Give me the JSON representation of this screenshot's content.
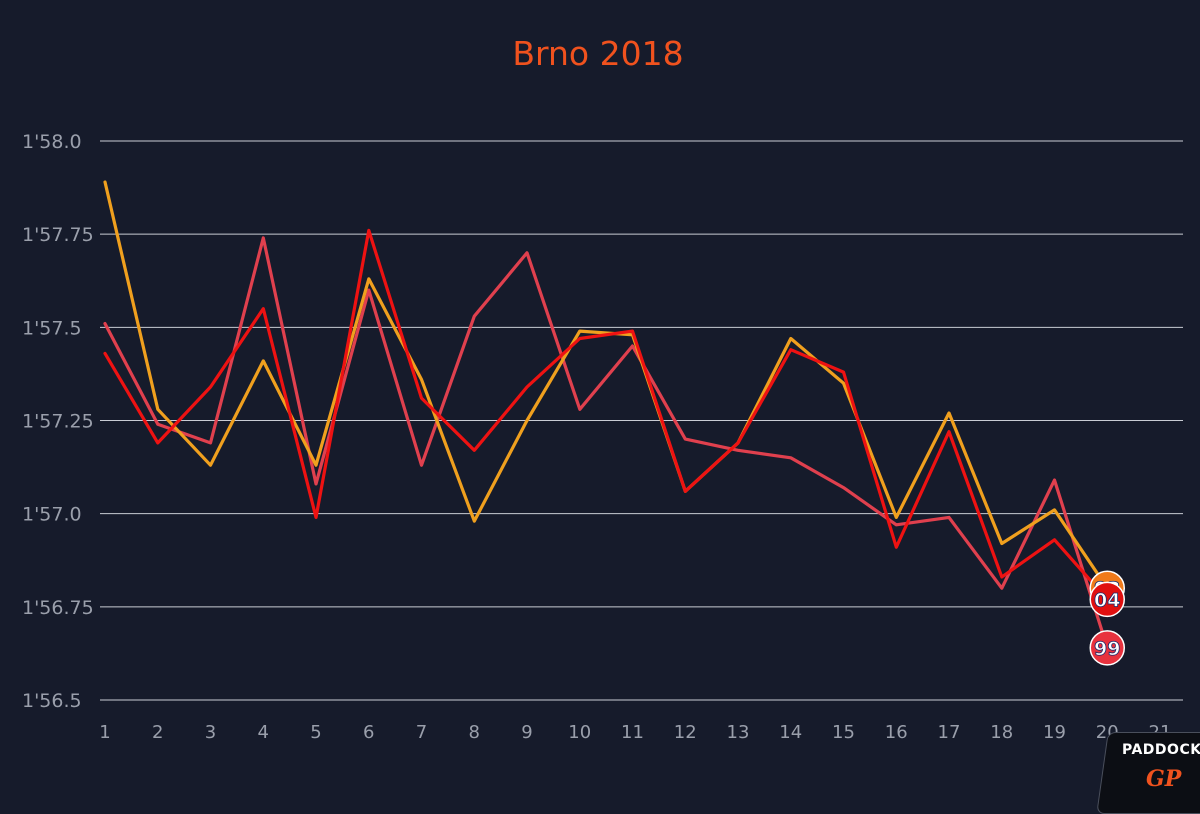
{
  "chart_data": {
    "type": "line",
    "title": "Brno 2018",
    "xlabel": "",
    "ylabel": "",
    "x": [
      1,
      2,
      3,
      4,
      5,
      6,
      7,
      8,
      9,
      10,
      11,
      12,
      13,
      14,
      15,
      16,
      17,
      18,
      19,
      20
    ],
    "xticks": [
      1,
      2,
      3,
      4,
      5,
      6,
      7,
      8,
      9,
      10,
      11,
      12,
      13,
      14,
      15,
      16,
      17,
      18,
      19,
      20,
      21
    ],
    "yticks": [
      {
        "value": 116.5,
        "label": "1'56.5"
      },
      {
        "value": 116.75,
        "label": "1'56.75"
      },
      {
        "value": 117.0,
        "label": "1'57.0"
      },
      {
        "value": 117.25,
        "label": "1'57.25"
      },
      {
        "value": 117.5,
        "label": "1'57.5"
      },
      {
        "value": 117.75,
        "label": "1'57.75"
      },
      {
        "value": 118.0,
        "label": "1'58.0"
      }
    ],
    "xlim": [
      1,
      21
    ],
    "ylim": [
      116.5,
      118.0
    ],
    "grid": true,
    "series": [
      {
        "name": "93",
        "color": "#f0a01e",
        "values": [
          117.89,
          117.28,
          117.13,
          117.41,
          117.13,
          117.63,
          117.36,
          116.98,
          117.25,
          117.49,
          117.48,
          117.06,
          117.19,
          117.47,
          117.35,
          116.99,
          117.27,
          116.92,
          117.01,
          116.8
        ]
      },
      {
        "name": "04",
        "color": "#ee1212",
        "values": [
          117.43,
          117.19,
          117.34,
          117.55,
          116.99,
          117.76,
          117.31,
          117.17,
          117.34,
          117.47,
          117.49,
          117.06,
          117.19,
          117.44,
          117.38,
          116.91,
          117.22,
          116.83,
          116.93,
          116.77
        ]
      },
      {
        "name": "99",
        "color": "#e0404e",
        "values": [
          117.51,
          117.24,
          117.19,
          117.74,
          117.08,
          117.6,
          117.13,
          117.53,
          117.7,
          117.28,
          117.45,
          117.2,
          117.17,
          117.15,
          117.07,
          116.97,
          116.99,
          116.8,
          117.09,
          116.64
        ]
      }
    ]
  },
  "logo": {
    "top": "PADDOCK",
    "bottom": "GP"
  }
}
